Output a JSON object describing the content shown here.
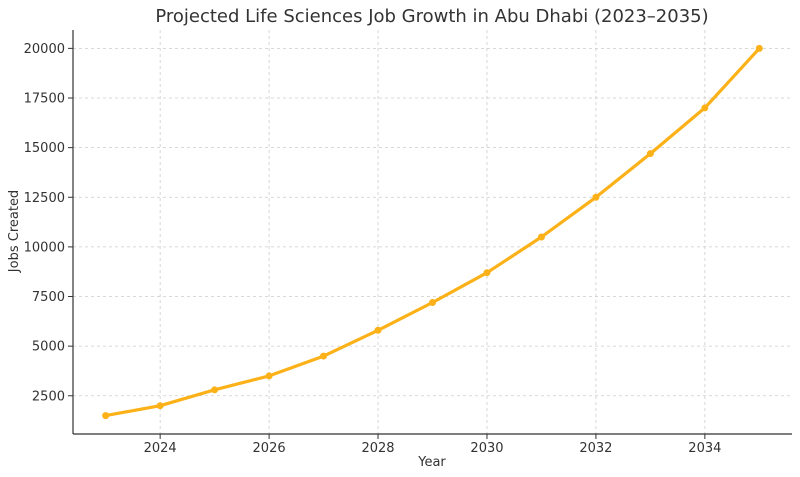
{
  "chart_data": {
    "type": "line",
    "title": "Projected Life Sciences Job Growth in Abu Dhabi (2023–2035)",
    "xlabel": "Year",
    "ylabel": "Jobs Created",
    "x": [
      2023,
      2024,
      2025,
      2026,
      2027,
      2028,
      2029,
      2030,
      2031,
      2032,
      2033,
      2034,
      2035
    ],
    "series": [
      {
        "values": [
          1500,
          2000,
          2800,
          3500,
          4500,
          5800,
          7200,
          8700,
          10500,
          12500,
          14700,
          17000,
          20000
        ],
        "color": "#FBB117"
      }
    ],
    "xticks": [
      2024,
      2026,
      2028,
      2030,
      2032,
      2034
    ],
    "yticks": [
      2500,
      5000,
      7500,
      10000,
      12500,
      15000,
      17500,
      20000
    ],
    "xlim": [
      2022.4,
      2035.6
    ],
    "ylim": [
      575,
      20925
    ],
    "grid": true,
    "legend": "none"
  }
}
